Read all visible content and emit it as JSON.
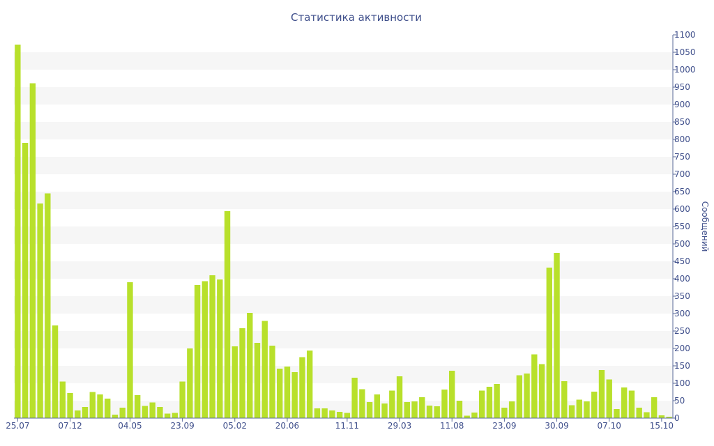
{
  "chart_data": {
    "type": "bar",
    "title": "Статистика активности",
    "ylabel": "Сообщений",
    "xlabel": "",
    "ylim": [
      0,
      1100
    ],
    "y_ticks": [
      0,
      50,
      100,
      150,
      200,
      250,
      300,
      350,
      400,
      450,
      500,
      550,
      600,
      650,
      700,
      750,
      800,
      850,
      900,
      950,
      1000,
      1050,
      1100
    ],
    "y_axis_position": "right",
    "grid": "alternating horizontal bands",
    "x_tick_labels": [
      {
        "label": "25.07",
        "index": 0
      },
      {
        "label": "07.12",
        "index": 7
      },
      {
        "label": "04.05",
        "index": 15
      },
      {
        "label": "23.09",
        "index": 22
      },
      {
        "label": "05.02",
        "index": 29
      },
      {
        "label": "20.06",
        "index": 36
      },
      {
        "label": "11.11",
        "index": 44
      },
      {
        "label": "29.03",
        "index": 51
      },
      {
        "label": "11.08",
        "index": 58
      },
      {
        "label": "23.09",
        "index": 65
      },
      {
        "label": "30.09",
        "index": 72
      },
      {
        "label": "07.10",
        "index": 79
      },
      {
        "label": "15.10",
        "index": 86
      }
    ],
    "values": [
      1072,
      790,
      961,
      616,
      645,
      266,
      105,
      72,
      22,
      32,
      75,
      68,
      56,
      10,
      30,
      390,
      66,
      35,
      45,
      32,
      13,
      15,
      105,
      200,
      382,
      393,
      410,
      398,
      594,
      206,
      258,
      302,
      216,
      279,
      208,
      142,
      148,
      132,
      175,
      194,
      28,
      28,
      22,
      18,
      15,
      116,
      83,
      46,
      68,
      42,
      79,
      120,
      46,
      48,
      60,
      36,
      34,
      82,
      136,
      50,
      7,
      16,
      79,
      90,
      98,
      30,
      48,
      123,
      128,
      183,
      155,
      432,
      474,
      106,
      37,
      53,
      48,
      76,
      138,
      111,
      26,
      88,
      79,
      30,
      17,
      60,
      8,
      4
    ],
    "colors": {
      "bar": "#b8e02b",
      "band": "#f6f6f6",
      "text": "#3f4f8b"
    }
  }
}
